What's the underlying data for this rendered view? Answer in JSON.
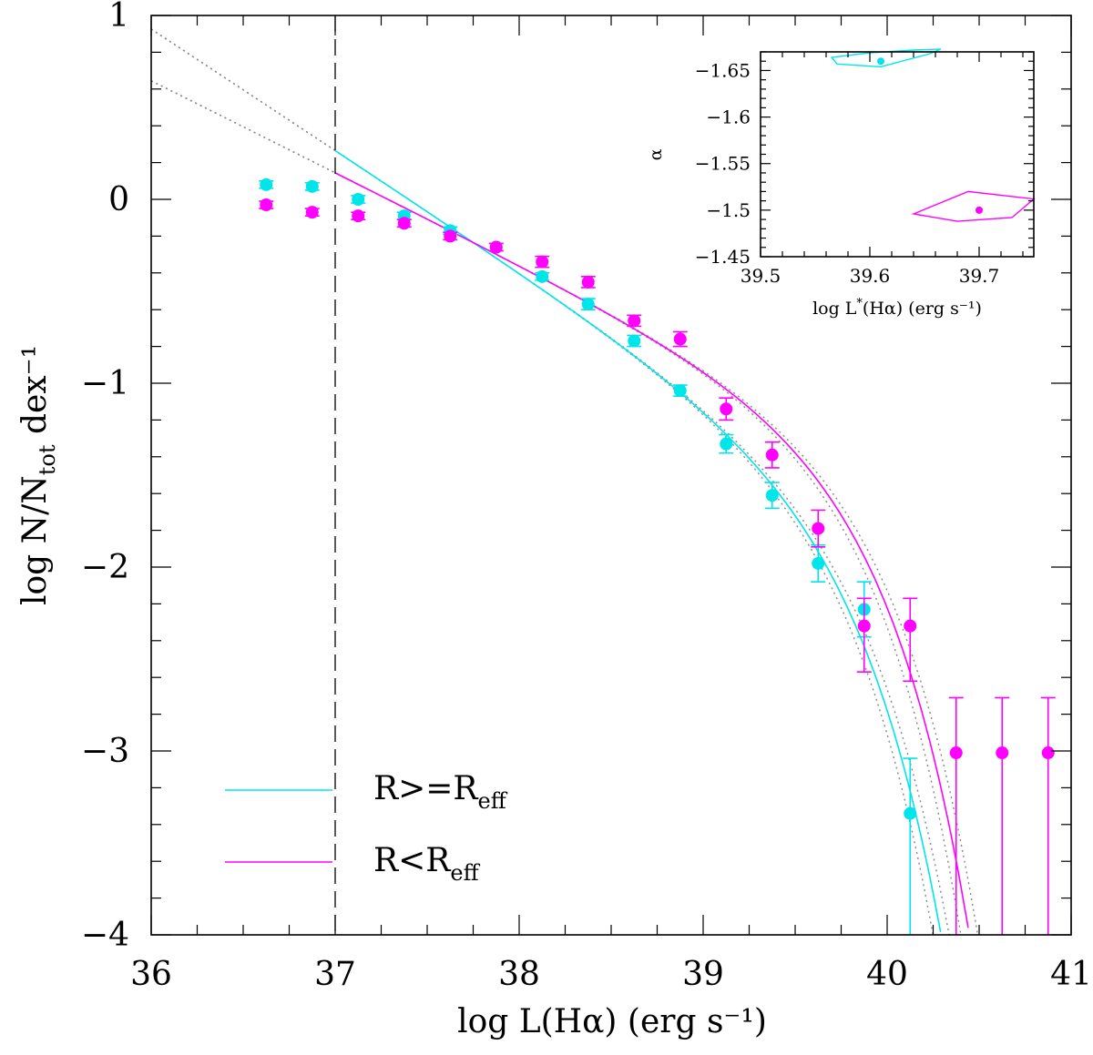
{
  "chart_data": {
    "type": "scatter",
    "title": "",
    "xlabel": "log L(Hα)    (erg s⁻¹)",
    "ylabel": "log N/N",
    "ylabel_sub": "tot",
    "ylabel_suffix": " dex⁻¹",
    "xlim": [
      36,
      41
    ],
    "ylim": [
      -4,
      1
    ],
    "x_ticks": [
      "36",
      "37",
      "38",
      "39",
      "40",
      "41"
    ],
    "y_ticks": [
      "1",
      "0",
      "−1",
      "−2",
      "−3",
      "−4"
    ],
    "completeness_limit": 37,
    "colors": {
      "outer": "#00e5ea",
      "inner": "#ff00ff",
      "envelope": "#888888",
      "axes": "#000000"
    },
    "series": [
      {
        "name": "R>=R_eff",
        "legend_main": "R>=R",
        "legend_sub": "eff",
        "color_key": "outer",
        "x": [
          36.625,
          36.875,
          37.125,
          37.375,
          37.625,
          37.875,
          38.125,
          38.375,
          38.625,
          38.875,
          39.125,
          39.375,
          39.625,
          39.875,
          40.125
        ],
        "y": [
          0.08,
          0.07,
          0.0,
          -0.09,
          -0.17,
          -0.26,
          -0.42,
          -0.57,
          -0.77,
          -1.04,
          -1.33,
          -1.61,
          -1.98,
          -2.23,
          -3.34
        ],
        "err_up": [
          0.02,
          0.02,
          0.02,
          0.02,
          0.02,
          0.02,
          0.02,
          0.03,
          0.03,
          0.03,
          0.05,
          0.07,
          0.1,
          0.15,
          0.3
        ],
        "err_down": [
          0.02,
          0.02,
          0.02,
          0.02,
          0.02,
          0.02,
          0.02,
          0.03,
          0.03,
          0.03,
          0.05,
          0.07,
          0.1,
          0.15,
          0.7
        ],
        "fit": {
          "log_L_star": 39.61,
          "alpha": -1.66
        }
      },
      {
        "name": "R<R_eff",
        "legend_main": "R<R",
        "legend_sub": "eff",
        "color_key": "inner",
        "x": [
          36.625,
          36.875,
          37.125,
          37.375,
          37.625,
          37.875,
          38.125,
          38.375,
          38.625,
          38.875,
          39.125,
          39.375,
          39.625,
          39.875,
          40.125,
          40.375,
          40.625,
          40.875
        ],
        "y": [
          -0.03,
          -0.07,
          -0.09,
          -0.13,
          -0.2,
          -0.26,
          -0.34,
          -0.45,
          -0.66,
          -0.76,
          -1.14,
          -1.39,
          -1.79,
          -2.32,
          -2.32,
          -3.01,
          -3.01,
          -3.01
        ],
        "err_up": [
          0.02,
          0.02,
          0.02,
          0.02,
          0.02,
          0.02,
          0.03,
          0.03,
          0.03,
          0.04,
          0.06,
          0.07,
          0.1,
          0.15,
          0.15,
          0.3,
          0.3,
          0.3
        ],
        "err_down": [
          0.02,
          0.02,
          0.02,
          0.02,
          0.02,
          0.02,
          0.03,
          0.03,
          0.03,
          0.04,
          0.06,
          0.07,
          0.1,
          0.25,
          0.3,
          1.0,
          1.0,
          1.0
        ],
        "fit": {
          "log_L_star": 39.7,
          "alpha": -1.5
        }
      }
    ],
    "inset": {
      "type": "scatter",
      "xlabel_main": "log L",
      "xlabel_sup": "*",
      "xlabel_rest": "(Hα) (erg s⁻¹)",
      "ylabel": "α",
      "xlim": [
        39.5,
        39.75
      ],
      "ylim": [
        -1.45,
        -1.67
      ],
      "x_ticks": [
        "39.5",
        "39.6",
        "39.7"
      ],
      "y_ticks": [
        "−1.65",
        "−1.6",
        "−1.55",
        "−1.5",
        "−1.45"
      ],
      "points": [
        {
          "series": "R>=R_eff",
          "color_key": "outer",
          "log_L_star": 39.61,
          "alpha": -1.66
        },
        {
          "series": "R<R_eff",
          "color_key": "inner",
          "log_L_star": 39.7,
          "alpha": -1.5
        }
      ],
      "contours": [
        {
          "color_key": "outer",
          "log_L_star": [
            39.565,
            39.6,
            39.64,
            39.665,
            39.655,
            39.61,
            39.57
          ],
          "alpha": [
            -1.664,
            -1.669,
            -1.672,
            -1.673,
            -1.668,
            -1.654,
            -1.657
          ]
        },
        {
          "color_key": "inner",
          "log_L_star": [
            39.64,
            39.69,
            39.75,
            39.73,
            39.68,
            39.64
          ],
          "alpha": [
            -1.496,
            -1.52,
            -1.512,
            -1.492,
            -1.488,
            -1.496
          ]
        }
      ]
    }
  }
}
